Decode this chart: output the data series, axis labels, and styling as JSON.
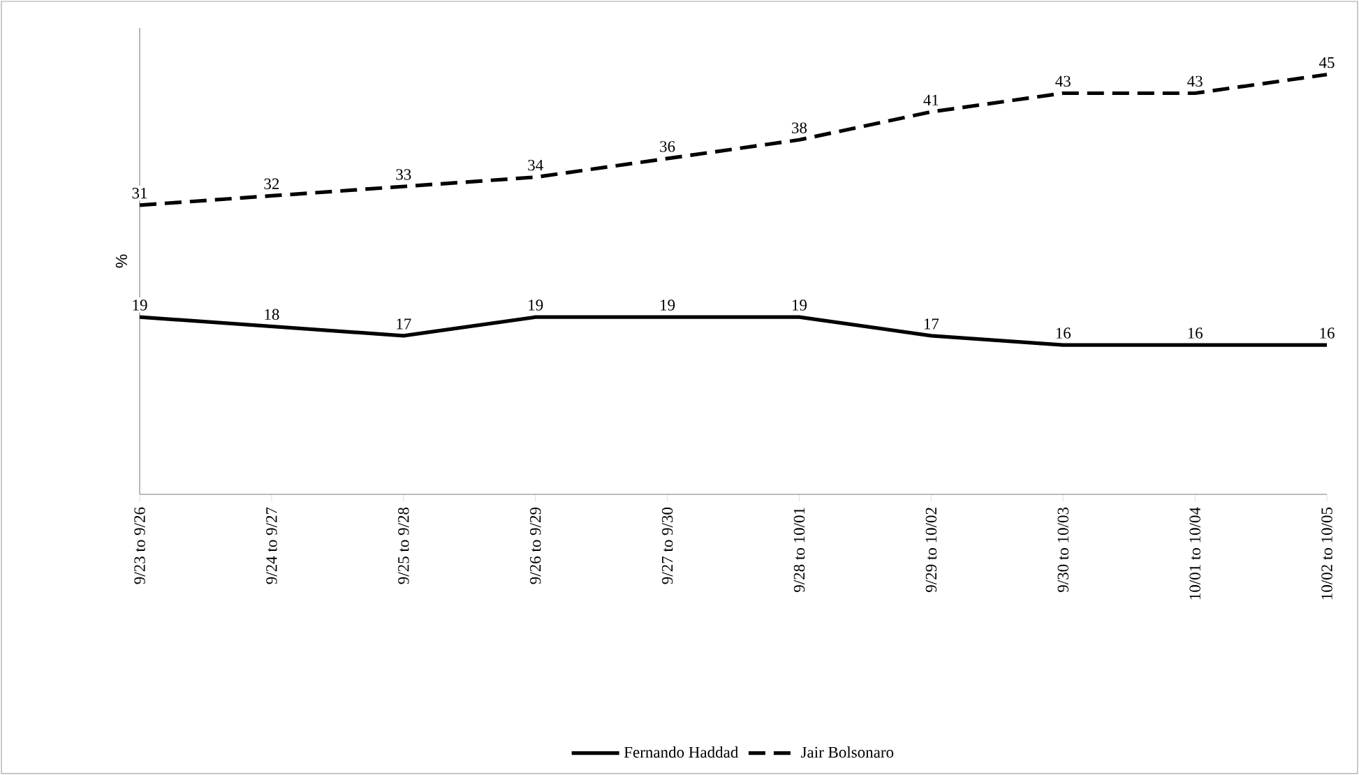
{
  "chart_data": {
    "type": "line",
    "ylabel": "%",
    "categories": [
      "9/23 to 9/26",
      "9/24 to 9/27",
      "9/25 to 9/28",
      "9/26 to 9/29",
      "9/27 to 9/30",
      "9/28 to 10/01",
      "9/29 to 10/02",
      "9/30 to 10/03",
      "10/01 to 10/04",
      "10/02 to 10/05"
    ],
    "series": [
      {
        "name": "Fernando Haddad",
        "color": "#000000",
        "line_style": "solid",
        "values": [
          19,
          18,
          17,
          19,
          19,
          19,
          17,
          16,
          16,
          16
        ]
      },
      {
        "name": "Jair Bolsonaro",
        "color": "#000000",
        "line_style": "dashed",
        "values": [
          31,
          32,
          33,
          34,
          36,
          38,
          41,
          43,
          43,
          45
        ]
      }
    ],
    "ylim": [
      0,
      50
    ],
    "data_labels": true,
    "legend": "bottom",
    "marker": "none"
  }
}
